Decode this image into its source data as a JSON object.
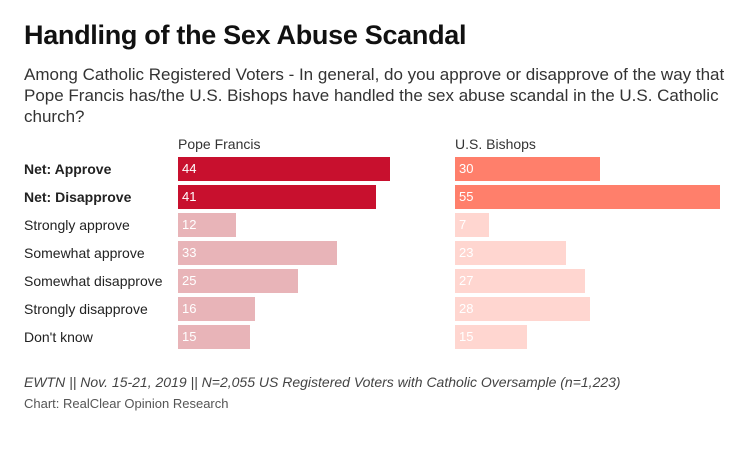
{
  "title": "Handling of the Sex Abuse Scandal",
  "subtitle": "Among Catholic Registered Voters - In general, do you approve or disapprove of the way that Pope Francis has/the U.S. Bishops have handled the sex abuse scandal in the U.S. Catholic church?",
  "footer": "EWTN || Nov. 15-21, 2019 || N=2,055 US Registered Voters with Catholic Oversample (n=1,223)",
  "credit": "Chart: RealClear Opinion Research",
  "colors": {
    "francis_net": "#c8102e",
    "francis_detail": "#e8b4b8",
    "bishops_net": "#ff7f6b",
    "bishops_detail": "#ffd6d0"
  },
  "chart_data": {
    "type": "bar",
    "orientation": "horizontal",
    "categories": [
      "Net: Approve",
      "Net: Disapprove",
      "Strongly approve",
      "Somewhat approve",
      "Somewhat disapprove",
      "Strongly disapprove",
      "Don't know"
    ],
    "bold_categories": [
      "Net: Approve",
      "Net: Disapprove"
    ],
    "series": [
      {
        "name": "Pope Francis",
        "values": [
          44,
          41,
          12,
          33,
          25,
          16,
          15
        ]
      },
      {
        "name": "U.S. Bishops",
        "values": [
          30,
          55,
          7,
          23,
          27,
          28,
          15
        ]
      }
    ],
    "xlim": [
      0,
      55
    ]
  }
}
